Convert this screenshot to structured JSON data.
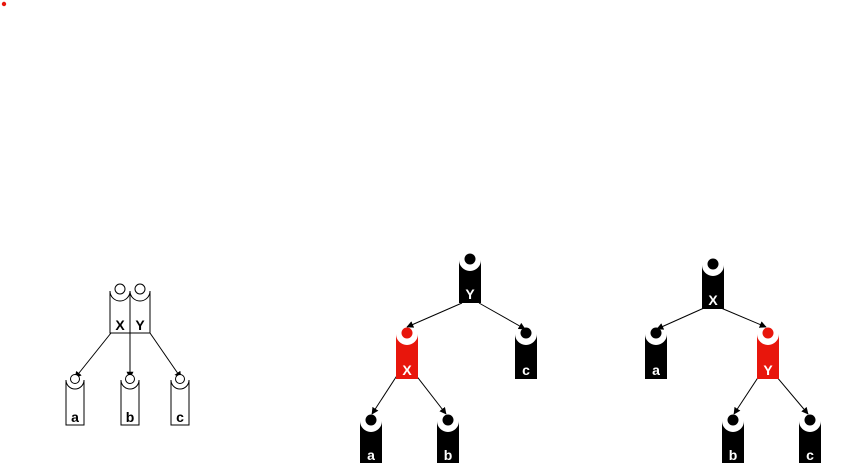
{
  "colors": {
    "black": "#000000",
    "red": "#e8160c",
    "white": "#ffffff"
  },
  "trees": [
    {
      "name": "two-three-node-tree",
      "parent": {
        "keys": [
          "X",
          "Y"
        ]
      },
      "children": [
        "a",
        "b",
        "c"
      ]
    },
    {
      "name": "red-black-left-leaning",
      "root": {
        "key": "Y",
        "color": "black"
      },
      "red_child": {
        "key": "X",
        "color": "red"
      },
      "children": [
        "a",
        "b",
        "c"
      ]
    },
    {
      "name": "red-black-right-leaning",
      "root": {
        "key": "X",
        "color": "black"
      },
      "red_child": {
        "key": "Y",
        "color": "red"
      },
      "children": [
        "a",
        "b",
        "c"
      ]
    }
  ]
}
